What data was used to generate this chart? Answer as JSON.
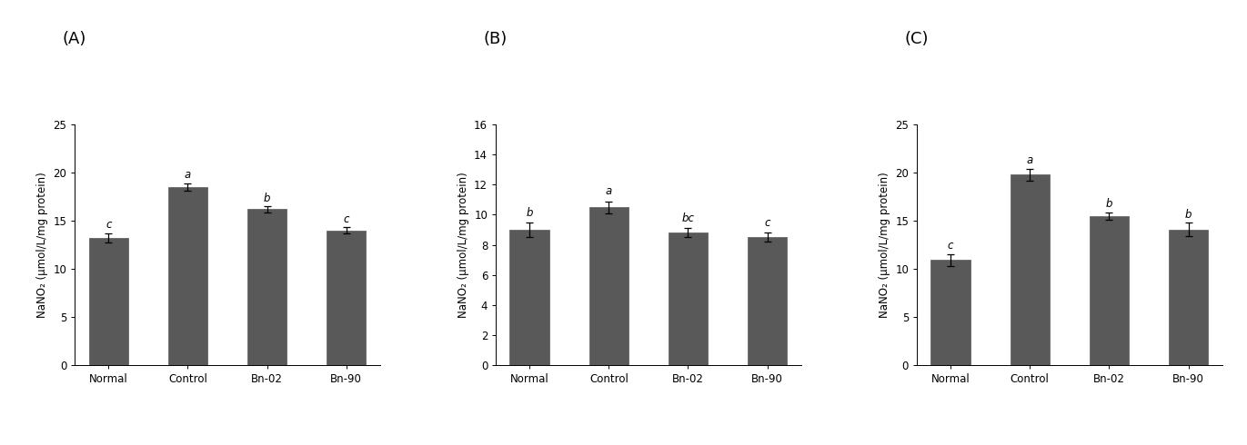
{
  "panels": [
    {
      "label": "(A)",
      "categories": [
        "Normal",
        "Control",
        "Bn-02",
        "Bn-90"
      ],
      "values": [
        13.2,
        18.5,
        16.2,
        14.0
      ],
      "errors": [
        0.5,
        0.4,
        0.3,
        0.3
      ],
      "sig_labels": [
        "c",
        "a",
        "b",
        "c"
      ],
      "ylabel": "NaNO₂ (μmol/L/mg protein)",
      "ylim": [
        0,
        25
      ],
      "yticks": [
        0,
        5,
        10,
        15,
        20,
        25
      ]
    },
    {
      "label": "(B)",
      "categories": [
        "Normal",
        "Control",
        "Bn-02",
        "Bn-90"
      ],
      "values": [
        9.0,
        10.5,
        8.8,
        8.5
      ],
      "errors": [
        0.5,
        0.4,
        0.3,
        0.3
      ],
      "sig_labels": [
        "b",
        "a",
        "bc",
        "c"
      ],
      "ylabel": "NaNO₂ (μmol/L/mg protein)",
      "ylim": [
        0,
        16
      ],
      "yticks": [
        0,
        2,
        4,
        6,
        8,
        10,
        12,
        14,
        16
      ]
    },
    {
      "label": "(C)",
      "categories": [
        "Normal",
        "Control",
        "Bn-02",
        "Bn-90"
      ],
      "values": [
        10.9,
        19.8,
        15.5,
        14.1
      ],
      "errors": [
        0.6,
        0.6,
        0.4,
        0.7
      ],
      "sig_labels": [
        "c",
        "a",
        "b",
        "b"
      ],
      "ylabel": "NaNO₂ (μmol/L/mg protein)",
      "ylim": [
        0,
        25
      ],
      "yticks": [
        0,
        5,
        10,
        15,
        20,
        25
      ]
    }
  ],
  "bar_color": "#595959",
  "bar_width": 0.5,
  "bar_edgecolor": "#595959",
  "background_color": "#ffffff",
  "tick_fontsize": 8.5,
  "ylabel_fontsize": 8.5,
  "sig_fontsize": 8.5,
  "panel_label_fontsize": 13
}
